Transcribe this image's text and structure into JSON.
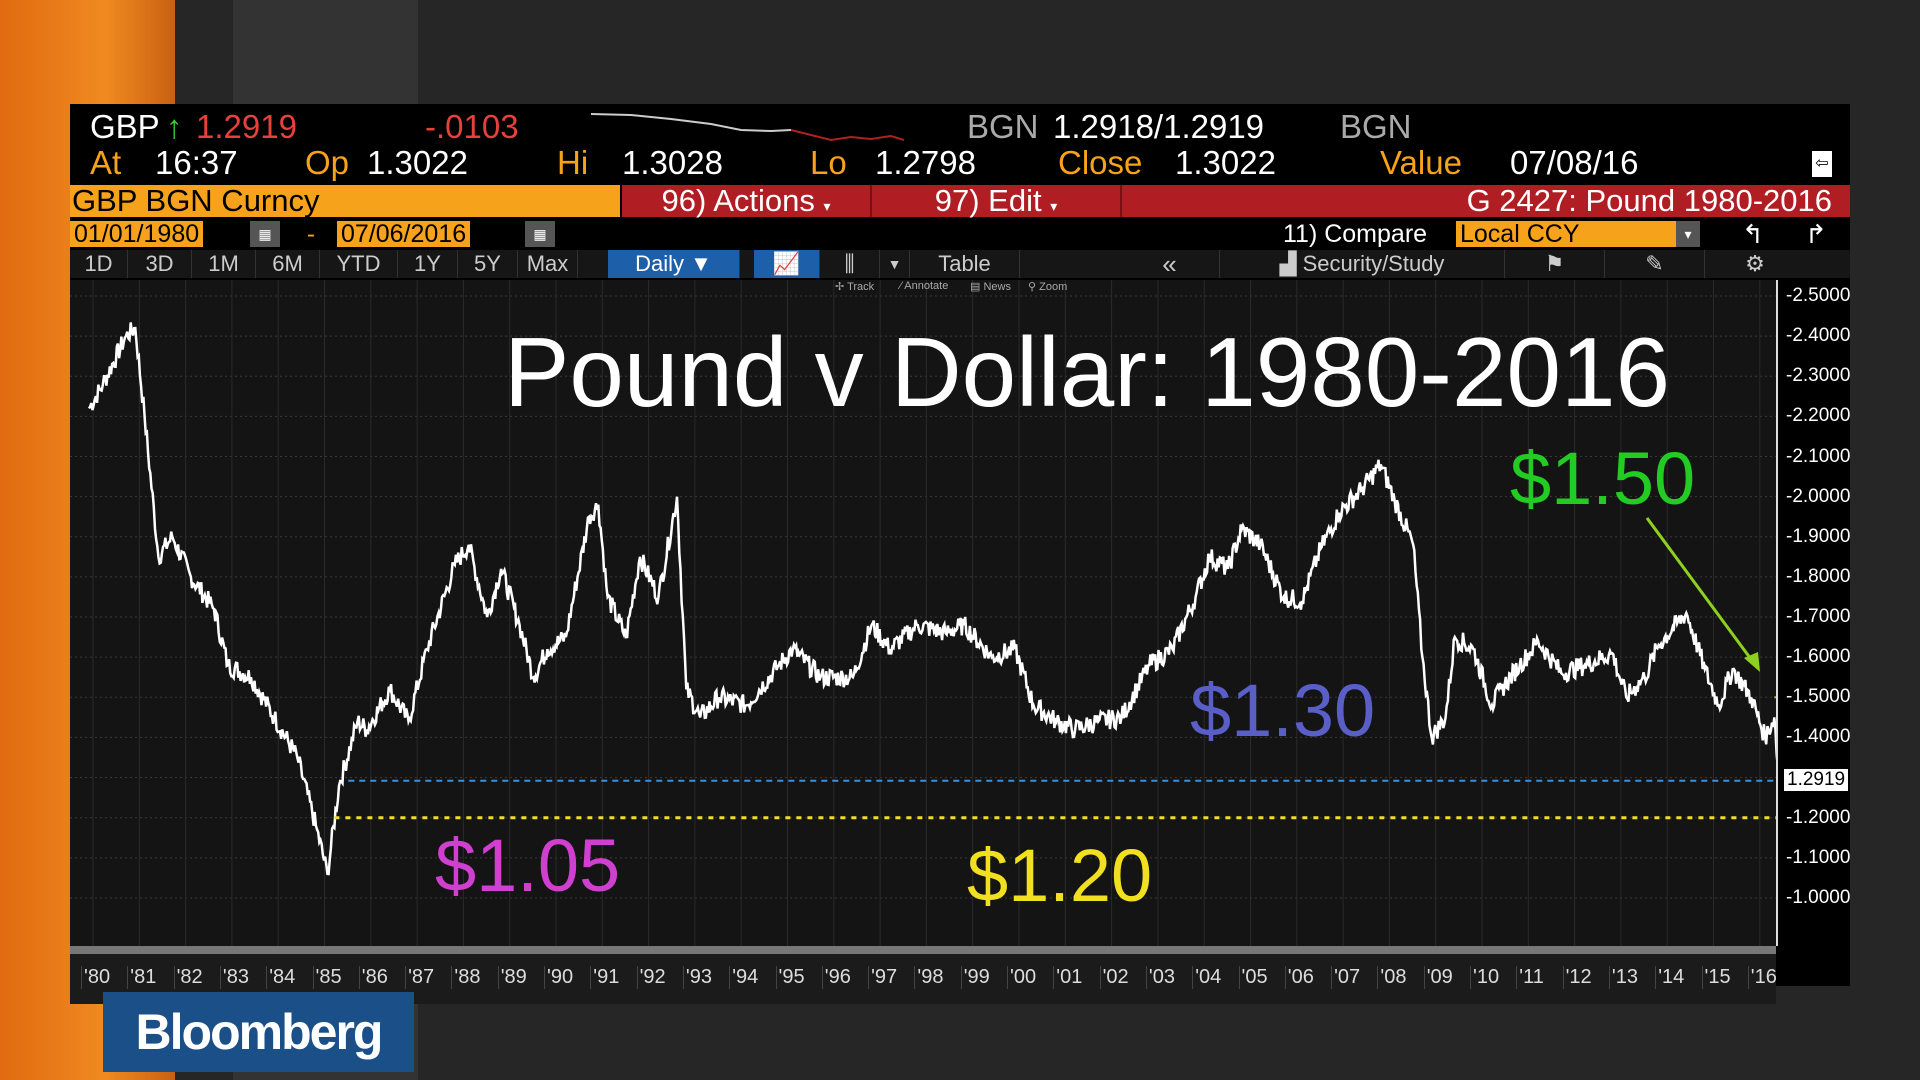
{
  "header": {
    "ticker": "GBP",
    "last": "1.2919",
    "change": "-.0103",
    "bid_src": "BGN",
    "bid_ask": "1.2918/1.2919",
    "ask_src": "BGN",
    "at_label": "At",
    "at": "16:37",
    "op_label": "Op",
    "op": "1.3022",
    "hi_label": "Hi",
    "hi": "1.3028",
    "lo_label": "Lo",
    "lo": "1.2798",
    "close_label": "Close",
    "close": "1.3022",
    "value_label": "Value",
    "value": "07/08/16"
  },
  "bar": {
    "security": "GBP BGN Curncy",
    "actions": "96) Actions",
    "edit": "97) Edit",
    "chart_name": "G 2427: Pound 1980-2016"
  },
  "dates": {
    "start": "01/01/1980",
    "sep": "-",
    "end": "07/06/2016",
    "compare": "11) Compare",
    "currency": "Local CCY"
  },
  "tools": {
    "ranges": [
      "1D",
      "3D",
      "1M",
      "6M",
      "YTD",
      "1Y",
      "5Y",
      "Max"
    ],
    "period": "Daily ▼",
    "table": "Table",
    "collapse": "«",
    "security_study": "Security/Study"
  },
  "mini": {
    "track": "Track",
    "annotate": "Annotate",
    "news": "News",
    "zoom": "Zoom"
  },
  "logo": "Bloomberg",
  "colors": {
    "orange": "#f7a21b",
    "red": "#b01e24",
    "blue_line": "#3a8fe0",
    "yellow_line": "#f0e020",
    "green": "#22cc22",
    "purple": "#5a5fc8",
    "magenta": "#d040d0"
  },
  "chart_data": {
    "type": "line",
    "title": "Pound v Dollar: 1980-2016",
    "ylim": [
      0.95,
      2.55
    ],
    "yticks": [
      "2.5000",
      "2.4000",
      "2.3000",
      "2.2000",
      "2.1000",
      "2.0000",
      "1.9000",
      "1.8000",
      "1.7000",
      "1.6000",
      "1.5000",
      "1.4000",
      "1.2000",
      "1.1000",
      "1.0000"
    ],
    "xticks": [
      "'80",
      "'81",
      "'82",
      "'83",
      "'84",
      "'85",
      "'86",
      "'87",
      "'88",
      "'89",
      "'90",
      "'91",
      "'92",
      "'93",
      "'94",
      "'95",
      "'96",
      "'97",
      "'98",
      "'99",
      "'00",
      "'01",
      "'02",
      "'03",
      "'04",
      "'05",
      "'06",
      "'07",
      "'08",
      "'09",
      "'10",
      "'11",
      "'12",
      "'13",
      "'14",
      "'15",
      "'16"
    ],
    "last_price_label": "1.2919",
    "grid": true,
    "series": [
      {
        "x": [
          1980.0,
          1980.3,
          1980.8,
          1981.0,
          1981.2,
          1981.5,
          1981.8,
          1982.2,
          1982.7,
          1983.0,
          1983.5,
          1984.0,
          1984.5,
          1984.9,
          1985.15,
          1985.4,
          1985.8,
          1986.0,
          1986.5,
          1986.9,
          1987.3,
          1987.9,
          1988.2,
          1988.6,
          1988.9,
          1989.3,
          1989.6,
          1989.9,
          1990.3,
          1990.8,
          1991.0,
          1991.2,
          1991.6,
          1991.9,
          1992.3,
          1992.7,
          1992.9,
          1993.2,
          1993.6,
          1994.2,
          1994.9,
          1995.2,
          1995.8,
          1996.5,
          1996.9,
          1997.3,
          1997.9,
          1998.5,
          1998.9,
          1999.5,
          2000.0,
          2000.4,
          2000.9,
          2001.3,
          2001.8,
          2002.3,
          2002.9,
          2003.4,
          2003.9,
          2004.2,
          2004.6,
          2004.9,
          2005.3,
          2005.8,
          2006.2,
          2006.6,
          2007.0,
          2007.5,
          2007.9,
          2008.2,
          2008.6,
          2008.8,
          2009.0,
          2009.3,
          2009.5,
          2009.9,
          2010.3,
          2010.5,
          2010.9,
          2011.3,
          2011.8,
          2012.3,
          2012.9,
          2013.2,
          2013.6,
          2013.9,
          2014.5,
          2014.9,
          2015.2,
          2015.5,
          2015.9,
          2016.2,
          2016.4,
          2016.5
        ],
        "y": [
          2.22,
          2.28,
          2.4,
          2.42,
          2.2,
          1.85,
          1.9,
          1.8,
          1.72,
          1.58,
          1.55,
          1.45,
          1.35,
          1.18,
          1.06,
          1.28,
          1.44,
          1.42,
          1.52,
          1.44,
          1.62,
          1.83,
          1.88,
          1.7,
          1.82,
          1.68,
          1.55,
          1.62,
          1.65,
          1.95,
          1.98,
          1.75,
          1.65,
          1.85,
          1.75,
          2.0,
          1.52,
          1.45,
          1.5,
          1.48,
          1.58,
          1.62,
          1.55,
          1.55,
          1.68,
          1.62,
          1.68,
          1.66,
          1.68,
          1.6,
          1.62,
          1.48,
          1.44,
          1.42,
          1.44,
          1.45,
          1.58,
          1.62,
          1.75,
          1.85,
          1.82,
          1.92,
          1.88,
          1.75,
          1.74,
          1.87,
          1.96,
          2.02,
          2.08,
          1.99,
          1.88,
          1.6,
          1.4,
          1.45,
          1.65,
          1.62,
          1.48,
          1.52,
          1.58,
          1.64,
          1.56,
          1.58,
          1.61,
          1.5,
          1.55,
          1.63,
          1.71,
          1.57,
          1.48,
          1.57,
          1.5,
          1.4,
          1.45,
          1.29
        ]
      }
    ],
    "reference_lines": [
      {
        "value": 1.2919,
        "color": "#3a8fe0"
      },
      {
        "value": 1.2,
        "color": "#f0e020"
      },
      {
        "value": 1.5,
        "color": "#8ed020"
      }
    ],
    "annotations": [
      "$1.50",
      "$1.30",
      "$1.05",
      "$1.20"
    ]
  }
}
